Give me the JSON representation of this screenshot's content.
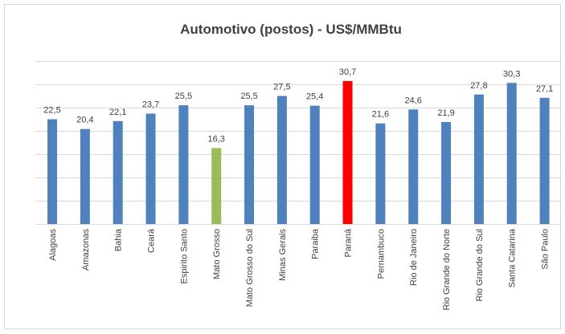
{
  "chart_data": {
    "type": "bar",
    "title": "Automotivo (postos) - US$/MMBtu",
    "categories": [
      "Alagoas",
      "Amazonas",
      "Bahia",
      "Ceará",
      "Espirito Santo",
      "Mato Grosso",
      "Mato Grosso do Sul",
      "Minas Gerais",
      "Paraiba",
      "Paraná",
      "Pernambuco",
      "Rio de Janeiro",
      "Rio Grande do Norte",
      "Rio Grande do Sul",
      "Santa Catarina",
      "São Paulo"
    ],
    "values": [
      22.5,
      20.4,
      22.1,
      23.7,
      25.5,
      16.3,
      25.5,
      27.5,
      25.4,
      30.7,
      21.6,
      24.6,
      21.9,
      27.8,
      30.3,
      27.1
    ],
    "value_labels": [
      "22,5",
      "20,4",
      "22,1",
      "23,7",
      "25,5",
      "16,3",
      "25,5",
      "27,5",
      "25,4",
      "30,7",
      "21,6",
      "24,6",
      "21,9",
      "27,8",
      "30,3",
      "27,1"
    ],
    "colors": [
      "#4f81bd",
      "#4f81bd",
      "#4f81bd",
      "#4f81bd",
      "#4f81bd",
      "#9bbb59",
      "#4f81bd",
      "#4f81bd",
      "#4f81bd",
      "#ff0000",
      "#4f81bd",
      "#4f81bd",
      "#4f81bd",
      "#4f81bd",
      "#4f81bd",
      "#4f81bd"
    ],
    "ylim": [
      0,
      35
    ],
    "yticks": [
      0,
      5,
      10,
      15,
      20,
      25,
      30,
      35
    ],
    "grid": true
  }
}
